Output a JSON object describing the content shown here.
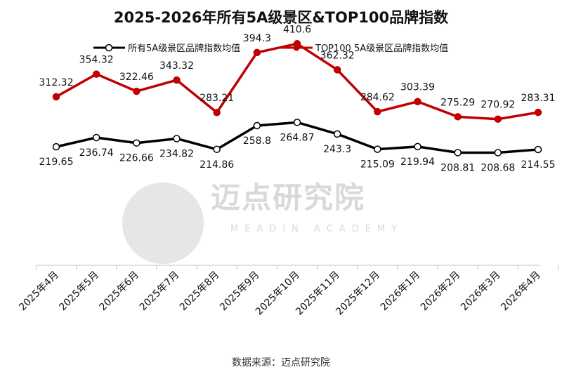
{
  "chart_data": {
    "type": "line",
    "title": "2025-2026年所有5A级景区&TOP100品牌指数",
    "categories": [
      "2025年4月",
      "2025年5月",
      "2025年6月",
      "2025年7月",
      "2025年8月",
      "2025年9月",
      "2025年10月",
      "2025年11月",
      "2025年12月",
      "2026年1月",
      "2026年2月",
      "2026年3月",
      "2026年4月"
    ],
    "series": [
      {
        "name": "所有5A级景区品牌指数均值",
        "values": [
          219.65,
          236.74,
          226.66,
          234.82,
          214.86,
          258.8,
          264.87,
          243.3,
          215.09,
          219.94,
          208.81,
          208.68,
          214.55
        ],
        "labels": [
          "219.65",
          "236.74",
          "226.66",
          "234.82",
          "214.86",
          "258.8",
          "264.87",
          "243.3",
          "215.09",
          "219.94",
          "208.81",
          "208.68",
          "214.55"
        ],
        "color": "#000000",
        "marker": "hollow-circle"
      },
      {
        "name": "TOP100 5A级景区品牌指数均值",
        "values": [
          312.32,
          354.32,
          322.46,
          343.32,
          283.21,
          394.3,
          410.6,
          362.32,
          284.62,
          303.39,
          275.29,
          270.92,
          283.31
        ],
        "labels": [
          "312.32",
          "354.32",
          "322.46",
          "343.32",
          "283.21",
          "394.3",
          "410.6",
          "362.32",
          "284.62",
          "303.39",
          "275.29",
          "270.92",
          "283.31"
        ],
        "color": "#c00000",
        "marker": "filled-circle"
      }
    ],
    "ylim": [
      0,
      450
    ],
    "grid": false,
    "legend": "top"
  },
  "source": "数据来源：迈点研究院",
  "watermark": {
    "text": "迈点研究院",
    "sub": "MEADIN ACADEMY"
  }
}
